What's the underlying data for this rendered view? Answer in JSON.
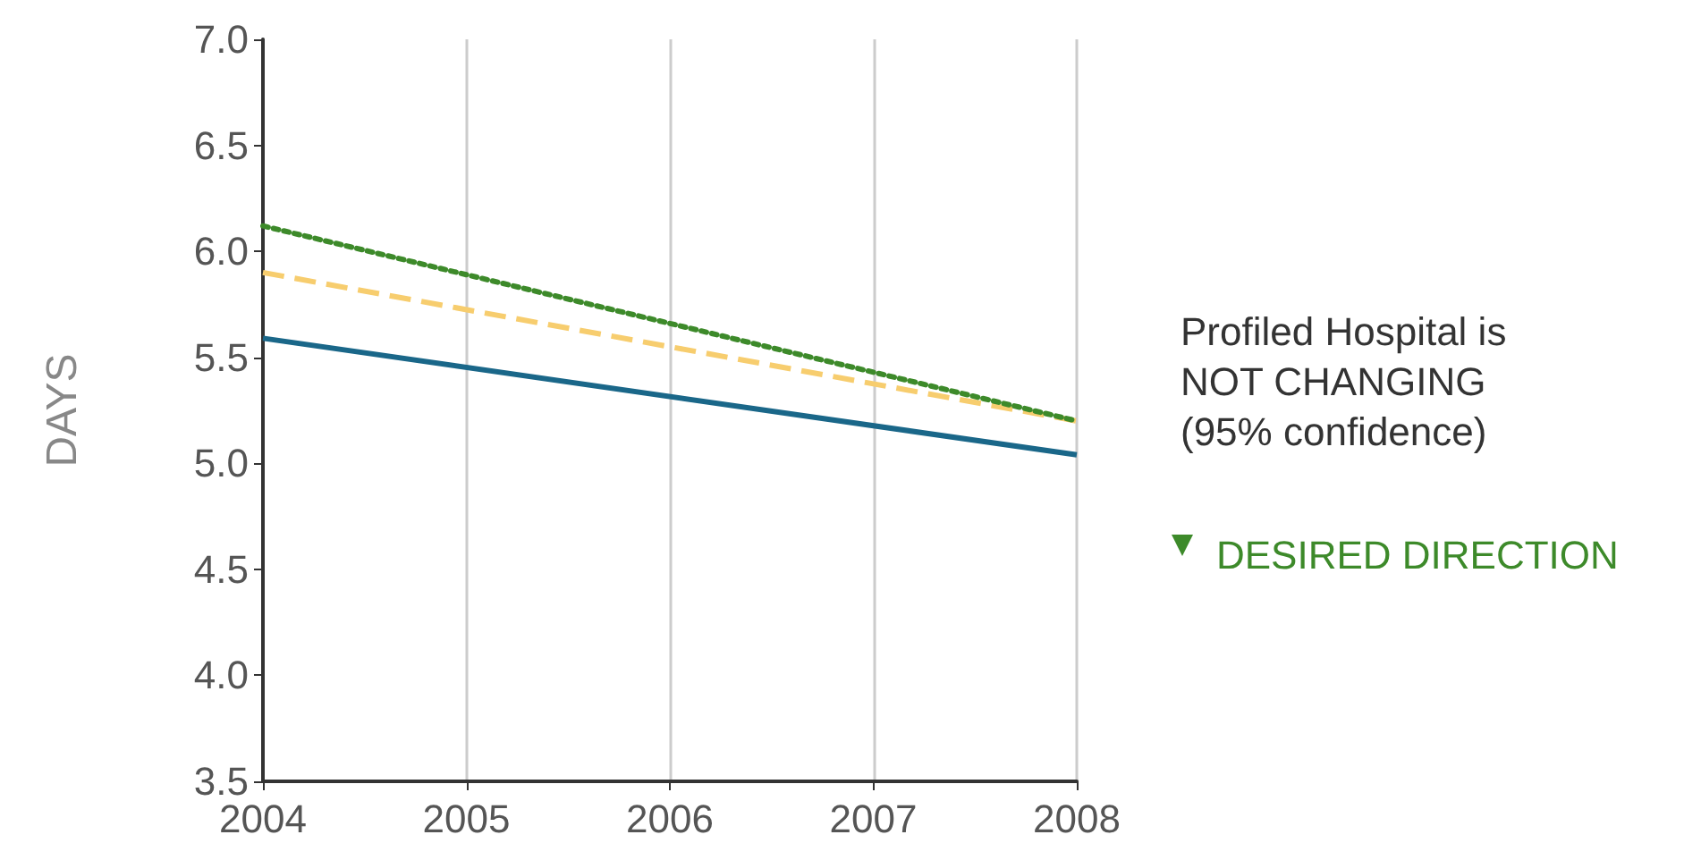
{
  "chart_data": {
    "type": "line",
    "ylabel": "DAYS",
    "x": [
      2004,
      2008
    ],
    "series": [
      {
        "color": "#1a6789",
        "values": [
          5.59,
          5.04
        ],
        "line_style": "solid"
      },
      {
        "color": "#f7cd6e",
        "values": [
          5.9,
          5.2
        ],
        "line_style": "dashed"
      },
      {
        "color": "#3d8a2a",
        "values": [
          6.12,
          5.2
        ],
        "line_style": "dotted"
      }
    ],
    "xlim": [
      2004,
      2008
    ],
    "xticks": [
      2004,
      2005,
      2006,
      2007,
      2008
    ],
    "ylim": [
      3.5,
      7.0
    ],
    "yticks": [
      {
        "value": 3.5,
        "label": "3.5"
      },
      {
        "value": 4,
        "label": "4.0"
      },
      {
        "value": 4.5,
        "label": "4.5"
      },
      {
        "value": 5,
        "label": "5.0"
      },
      {
        "value": 5.5,
        "label": "5.5"
      },
      {
        "value": 6,
        "label": "6.0"
      },
      {
        "value": 6.5,
        "label": "6.5"
      },
      {
        "value": 7,
        "label": "7.0"
      }
    ],
    "grid": "x",
    "marker": "none",
    "annotations": [
      "Profiled Hospital is NOT CHANGING (95% confidence)",
      "DESIRED DIRECTION"
    ]
  }
}
